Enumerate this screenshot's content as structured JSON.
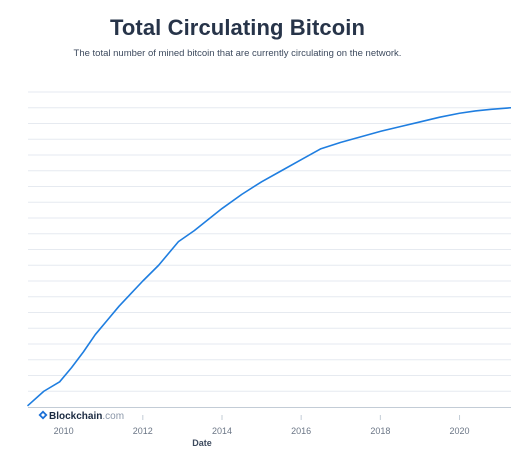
{
  "chart_data": {
    "type": "line",
    "title": "Total Circulating Bitcoin",
    "subtitle": "The total number of mined bitcoin that are currently circulating on the network.",
    "xlabel": "Date",
    "ylabel": "",
    "xlim": [
      2009.1,
      2021.3
    ],
    "ylim": [
      0,
      20000000
    ],
    "x_ticks": [
      2010,
      2012,
      2014,
      2016,
      2018,
      2020
    ],
    "x_tick_labels": [
      "2010",
      "2012",
      "2014",
      "2016",
      "2018",
      "2020"
    ],
    "y_gridlines": [
      0,
      1000000,
      2000000,
      3000000,
      4000000,
      5000000,
      6000000,
      7000000,
      8000000,
      9000000,
      10000000,
      11000000,
      12000000,
      13000000,
      14000000,
      15000000,
      16000000,
      17000000,
      18000000,
      19000000,
      20000000
    ],
    "grid": true,
    "legend": "none",
    "series": [
      {
        "color": "#1f7ee0",
        "x": [
          2009.1,
          2009.5,
          2009.9,
          2010.2,
          2010.5,
          2010.8,
          2011.1,
          2011.4,
          2011.7,
          2012.0,
          2012.4,
          2012.9,
          2013.3,
          2013.6,
          2014.0,
          2014.5,
          2015.0,
          2015.5,
          2016.0,
          2016.5,
          2017.0,
          2017.5,
          2018.0,
          2018.5,
          2019.0,
          2019.5,
          2020.0,
          2020.4,
          2020.8,
          2021.3
        ],
        "values": [
          100000,
          1000000,
          1600000,
          2500000,
          3500000,
          4600000,
          5500000,
          6400000,
          7200000,
          8000000,
          9000000,
          10500000,
          11200000,
          11800000,
          12600000,
          13500000,
          14300000,
          15000000,
          15700000,
          16400000,
          16800000,
          17150000,
          17500000,
          17800000,
          18100000,
          18400000,
          18650000,
          18800000,
          18900000,
          19000000
        ]
      }
    ]
  },
  "watermark": {
    "brand": "Blockchain",
    "suffix": ".com"
  },
  "colors": {
    "line": "#1f7ee0",
    "grid": "#e6eaf0",
    "axis": "#c3ccd6",
    "tick_text": "#6b7686",
    "title": "#273449",
    "logo": "#1b6fd6"
  }
}
